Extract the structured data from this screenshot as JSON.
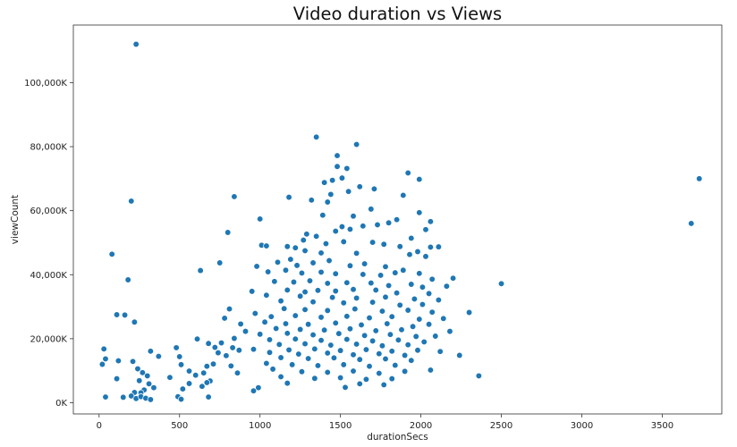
{
  "chart_data": {
    "type": "scatter",
    "title": "Video duration vs Views",
    "xlabel": "durationSecs",
    "ylabel": "viewCount",
    "xlim": [
      -160,
      3870
    ],
    "ylim": [
      -3500,
      118000
    ],
    "xticks": [
      0,
      500,
      1000,
      1500,
      2000,
      2500,
      3000,
      3500
    ],
    "yticks": [
      0,
      20000,
      40000,
      60000,
      80000,
      100000
    ],
    "ytick_labels": [
      "0K",
      "20,000K",
      "40,000K",
      "60,000K",
      "80,000K",
      "100,000K"
    ],
    "grid": false,
    "legend": "none",
    "point_color": "#1f77b4",
    "points": [
      [
        230,
        112000
      ],
      [
        1350,
        83000
      ],
      [
        1600,
        80700
      ],
      [
        1480,
        77200
      ],
      [
        1540,
        73200
      ],
      [
        1480,
        73800
      ],
      [
        1920,
        71800
      ],
      [
        1510,
        70200
      ],
      [
        1450,
        69500
      ],
      [
        1400,
        68800
      ],
      [
        1990,
        69800
      ],
      [
        1710,
        66800
      ],
      [
        1620,
        67500
      ],
      [
        1550,
        66000
      ],
      [
        1440,
        65100
      ],
      [
        840,
        64400
      ],
      [
        1180,
        64200
      ],
      [
        1890,
        64800
      ],
      [
        200,
        63000
      ],
      [
        1320,
        63300
      ],
      [
        1420,
        62700
      ],
      [
        1690,
        60500
      ],
      [
        3730,
        70000
      ],
      [
        3680,
        56000
      ],
      [
        1000,
        57400
      ],
      [
        1390,
        58600
      ],
      [
        1580,
        58300
      ],
      [
        1990,
        59400
      ],
      [
        2060,
        56600
      ],
      [
        1800,
        56200
      ],
      [
        1730,
        55600
      ],
      [
        1640,
        55200
      ],
      [
        1560,
        54200
      ],
      [
        1510,
        55000
      ],
      [
        800,
        53200
      ],
      [
        1290,
        52700
      ],
      [
        1350,
        52000
      ],
      [
        1470,
        53600
      ],
      [
        1850,
        57200
      ],
      [
        2030,
        54100
      ],
      [
        1940,
        51400
      ],
      [
        1010,
        49200
      ],
      [
        1040,
        49000
      ],
      [
        1170,
        48800
      ],
      [
        1220,
        48400
      ],
      [
        1270,
        50800
      ],
      [
        1410,
        49700
      ],
      [
        1520,
        50300
      ],
      [
        1700,
        50100
      ],
      [
        1770,
        49500
      ],
      [
        1870,
        48800
      ],
      [
        2060,
        48600
      ],
      [
        2110,
        48700
      ],
      [
        80,
        46400
      ],
      [
        1280,
        47500
      ],
      [
        1380,
        46800
      ],
      [
        1600,
        46700
      ],
      [
        1930,
        46300
      ],
      [
        1980,
        47200
      ],
      [
        2030,
        45700
      ],
      [
        1190,
        44800
      ],
      [
        1110,
        43900
      ],
      [
        750,
        43700
      ],
      [
        980,
        42600
      ],
      [
        1230,
        42900
      ],
      [
        1330,
        43700
      ],
      [
        1430,
        44400
      ],
      [
        1560,
        42800
      ],
      [
        1650,
        43400
      ],
      [
        1780,
        42500
      ],
      [
        1890,
        41400
      ],
      [
        630,
        41300
      ],
      [
        1050,
        40900
      ],
      [
        1160,
        41400
      ],
      [
        1260,
        40500
      ],
      [
        1380,
        40800
      ],
      [
        1470,
        40300
      ],
      [
        1640,
        40100
      ],
      [
        1750,
        39800
      ],
      [
        1840,
        40600
      ],
      [
        1990,
        40400
      ],
      [
        2070,
        38600
      ],
      [
        2200,
        38900
      ],
      [
        180,
        38400
      ],
      [
        1090,
        37900
      ],
      [
        1210,
        37700
      ],
      [
        1310,
        38100
      ],
      [
        1420,
        37300
      ],
      [
        1540,
        37500
      ],
      [
        1690,
        37400
      ],
      [
        1800,
        36600
      ],
      [
        1940,
        37000
      ],
      [
        2010,
        36100
      ],
      [
        2500,
        37200
      ],
      [
        2160,
        36400
      ],
      [
        950,
        34800
      ],
      [
        1170,
        35200
      ],
      [
        1280,
        34600
      ],
      [
        1360,
        35100
      ],
      [
        1470,
        34900
      ],
      [
        1580,
        35400
      ],
      [
        1720,
        35200
      ],
      [
        1850,
        34300
      ],
      [
        2050,
        34100
      ],
      [
        1040,
        33600
      ],
      [
        1250,
        33300
      ],
      [
        1450,
        32900
      ],
      [
        1600,
        32700
      ],
      [
        1780,
        33000
      ],
      [
        1960,
        32400
      ],
      [
        2110,
        32100
      ],
      [
        1130,
        31800
      ],
      [
        1330,
        31500
      ],
      [
        1520,
        31200
      ],
      [
        1700,
        31400
      ],
      [
        1870,
        30500
      ],
      [
        2010,
        30700
      ],
      [
        810,
        29300
      ],
      [
        1150,
        29400
      ],
      [
        1280,
        29100
      ],
      [
        1420,
        28800
      ],
      [
        1590,
        29300
      ],
      [
        1760,
        28600
      ],
      [
        1920,
        28900
      ],
      [
        2070,
        28300
      ],
      [
        2300,
        28200
      ],
      [
        110,
        27500
      ],
      [
        160,
        27400
      ],
      [
        970,
        27900
      ],
      [
        1070,
        26900
      ],
      [
        1220,
        27200
      ],
      [
        1380,
        26700
      ],
      [
        1540,
        27000
      ],
      [
        1680,
        26500
      ],
      [
        1820,
        26900
      ],
      [
        1990,
        26100
      ],
      [
        2140,
        26300
      ],
      [
        780,
        26400
      ],
      [
        220,
        25200
      ],
      [
        880,
        24600
      ],
      [
        1030,
        25200
      ],
      [
        1160,
        24700
      ],
      [
        1300,
        24500
      ],
      [
        1470,
        24900
      ],
      [
        1630,
        24300
      ],
      [
        1790,
        24700
      ],
      [
        1950,
        23800
      ],
      [
        2050,
        24500
      ],
      [
        1100,
        23200
      ],
      [
        1250,
        22900
      ],
      [
        1400,
        22700
      ],
      [
        1560,
        23100
      ],
      [
        1720,
        22500
      ],
      [
        1880,
        22800
      ],
      [
        2180,
        22300
      ],
      [
        910,
        22300
      ],
      [
        1000,
        21400
      ],
      [
        1170,
        21700
      ],
      [
        1330,
        21200
      ],
      [
        1490,
        21600
      ],
      [
        1650,
        21000
      ],
      [
        1810,
        21300
      ],
      [
        1970,
        20700
      ],
      [
        2090,
        20800
      ],
      [
        840,
        20100
      ],
      [
        1060,
        19700
      ],
      [
        1220,
        19900
      ],
      [
        1380,
        19500
      ],
      [
        1540,
        19800
      ],
      [
        1700,
        19300
      ],
      [
        1860,
        19600
      ],
      [
        2020,
        19000
      ],
      [
        610,
        19900
      ],
      [
        680,
        18500
      ],
      [
        760,
        18700
      ],
      [
        1120,
        18200
      ],
      [
        1280,
        18400
      ],
      [
        1440,
        18000
      ],
      [
        1600,
        18300
      ],
      [
        1760,
        17800
      ],
      [
        1920,
        18100
      ],
      [
        720,
        17300
      ],
      [
        830,
        17200
      ],
      [
        960,
        16700
      ],
      [
        1180,
        16500
      ],
      [
        1340,
        16800
      ],
      [
        1500,
        16300
      ],
      [
        1660,
        16600
      ],
      [
        1820,
        16100
      ],
      [
        1980,
        16400
      ],
      [
        2120,
        16000
      ],
      [
        30,
        16800
      ],
      [
        480,
        17200
      ],
      [
        320,
        16100
      ],
      [
        870,
        16400
      ],
      [
        740,
        15600
      ],
      [
        1060,
        15700
      ],
      [
        1240,
        15200
      ],
      [
        1420,
        15500
      ],
      [
        1580,
        15000
      ],
      [
        1740,
        15300
      ],
      [
        1900,
        14800
      ],
      [
        2240,
        14800
      ],
      [
        370,
        14500
      ],
      [
        40,
        13700
      ],
      [
        120,
        13100
      ],
      [
        210,
        12900
      ],
      [
        500,
        14400
      ],
      [
        790,
        14700
      ],
      [
        1130,
        14100
      ],
      [
        1300,
        13800
      ],
      [
        1460,
        14000
      ],
      [
        1620,
        13500
      ],
      [
        1780,
        13700
      ],
      [
        1940,
        13200
      ],
      [
        510,
        11900
      ],
      [
        560,
        9900
      ],
      [
        670,
        11400
      ],
      [
        710,
        12100
      ],
      [
        820,
        11500
      ],
      [
        1040,
        12300
      ],
      [
        1200,
        11900
      ],
      [
        1360,
        11600
      ],
      [
        1520,
        11900
      ],
      [
        1680,
        11400
      ],
      [
        1840,
        11700
      ],
      [
        2060,
        10200
      ],
      [
        20,
        12000
      ],
      [
        600,
        8600
      ],
      [
        650,
        9300
      ],
      [
        690,
        6800
      ],
      [
        860,
        9300
      ],
      [
        1080,
        10500
      ],
      [
        1260,
        9700
      ],
      [
        1420,
        9500
      ],
      [
        1580,
        9900
      ],
      [
        1740,
        9200
      ],
      [
        1900,
        9800
      ],
      [
        2360,
        8400
      ],
      [
        240,
        10600
      ],
      [
        270,
        9400
      ],
      [
        300,
        8400
      ],
      [
        440,
        7900
      ],
      [
        1130,
        8100
      ],
      [
        1340,
        7600
      ],
      [
        1500,
        7800
      ],
      [
        1660,
        7300
      ],
      [
        1820,
        7500
      ],
      [
        110,
        7500
      ],
      [
        250,
        6900
      ],
      [
        310,
        5900
      ],
      [
        340,
        4700
      ],
      [
        560,
        6000
      ],
      [
        640,
        5100
      ],
      [
        670,
        6300
      ],
      [
        1170,
        6100
      ],
      [
        1620,
        5900
      ],
      [
        1770,
        5600
      ],
      [
        280,
        4000
      ],
      [
        220,
        3200
      ],
      [
        260,
        3100
      ],
      [
        520,
        4300
      ],
      [
        990,
        4700
      ],
      [
        960,
        3700
      ],
      [
        1530,
        4800
      ],
      [
        40,
        1800
      ],
      [
        150,
        1700
      ],
      [
        200,
        2100
      ],
      [
        230,
        1300
      ],
      [
        260,
        1900
      ],
      [
        290,
        1400
      ],
      [
        320,
        1000
      ],
      [
        490,
        1900
      ],
      [
        510,
        1100
      ],
      [
        680,
        1800
      ]
    ]
  }
}
